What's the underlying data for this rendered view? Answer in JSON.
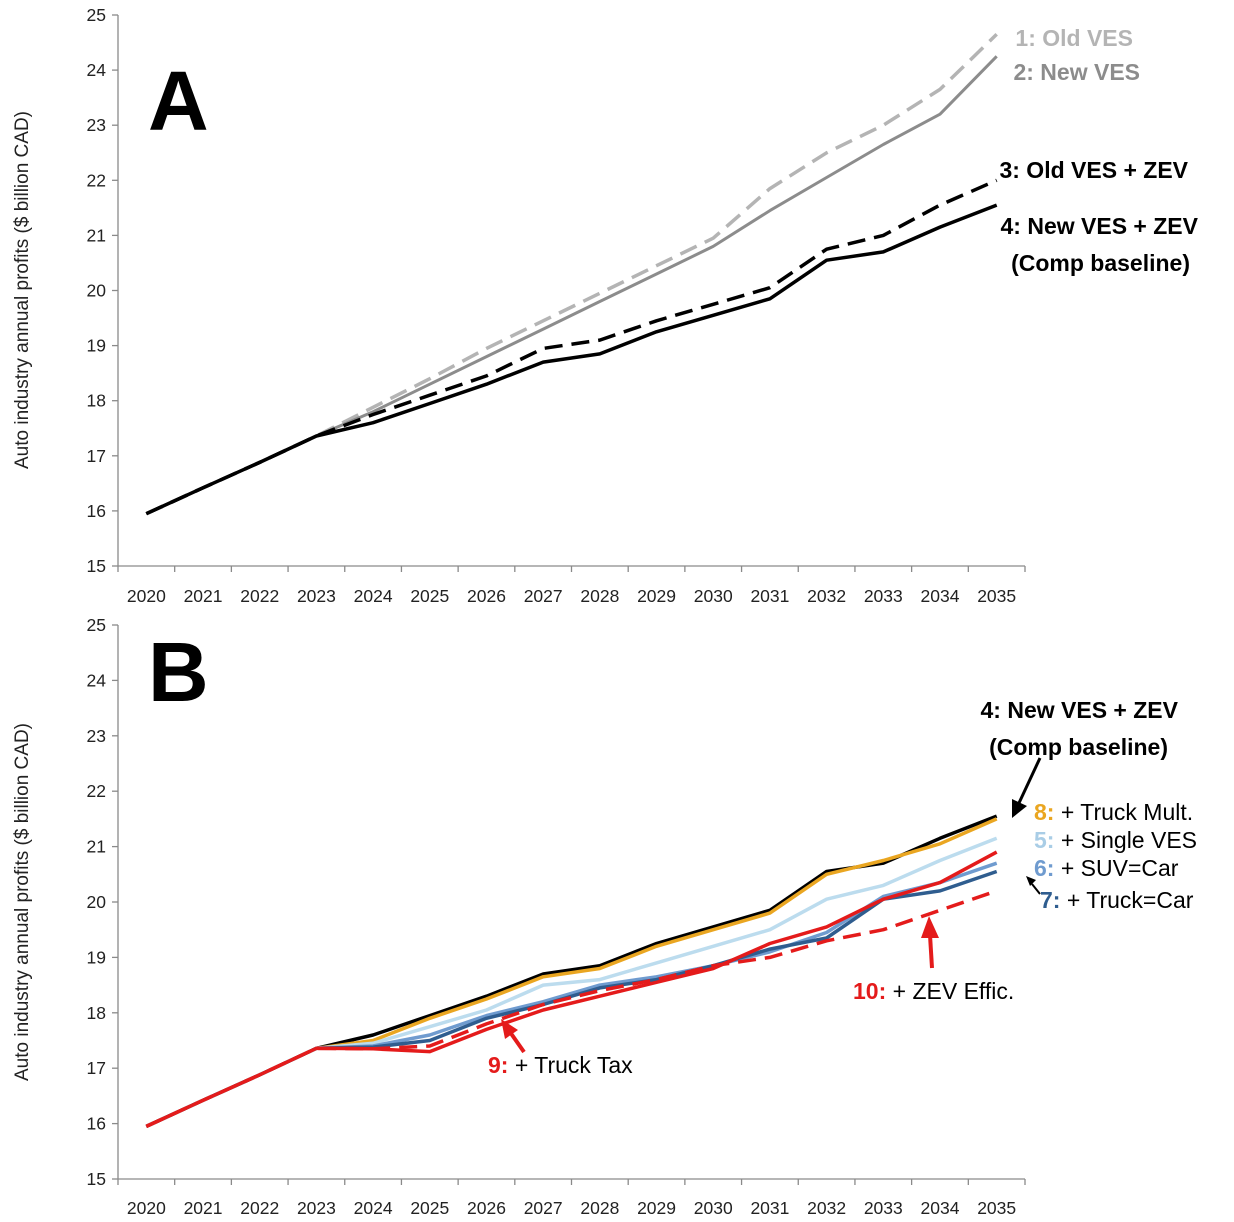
{
  "chart_data": [
    {
      "type": "line",
      "panel": "A",
      "ylabel": "Auto industry annual profits ($ billion CAD)",
      "xlabel": "",
      "categories": [
        "2020",
        "2021",
        "2022",
        "2023",
        "2024",
        "2025",
        "2026",
        "2027",
        "2028",
        "2029",
        "2030",
        "2031",
        "2032",
        "2033",
        "2034",
        "2035"
      ],
      "ylim": [
        15,
        25
      ],
      "yticks": [
        15,
        16,
        17,
        18,
        19,
        20,
        21,
        22,
        23,
        24,
        25
      ],
      "grid": false,
      "series": [
        {
          "name": "1: Old VES",
          "color": "#b4b4b4",
          "dash": true,
          "values": [
            15.95,
            16.42,
            16.88,
            17.36,
            17.88,
            18.4,
            18.95,
            19.45,
            19.95,
            20.45,
            20.95,
            21.85,
            22.5,
            23.0,
            23.65,
            24.65
          ]
        },
        {
          "name": "2: New VES",
          "color": "#8c8c8c",
          "dash": false,
          "values": [
            15.95,
            16.42,
            16.88,
            17.36,
            17.8,
            18.3,
            18.8,
            19.3,
            19.8,
            20.3,
            20.8,
            21.45,
            22.05,
            22.65,
            23.2,
            24.25
          ]
        },
        {
          "name": "3: Old VES + ZEV",
          "color": "#000000",
          "dash": true,
          "values": [
            15.95,
            16.42,
            16.88,
            17.36,
            17.75,
            18.1,
            18.45,
            18.95,
            19.1,
            19.45,
            19.75,
            20.05,
            20.75,
            21.0,
            21.55,
            22.0
          ]
        },
        {
          "name": "4: New VES + ZEV",
          "name_line2": "(Comp baseline)",
          "color": "#000000",
          "dash": false,
          "values": [
            15.95,
            16.42,
            16.88,
            17.36,
            17.6,
            17.95,
            18.3,
            18.7,
            18.85,
            19.25,
            19.55,
            19.85,
            20.55,
            20.7,
            21.15,
            21.55
          ]
        }
      ]
    },
    {
      "type": "line",
      "panel": "B",
      "ylabel": "Auto industry annual profits ($ billion CAD)",
      "xlabel": "",
      "categories": [
        "2020",
        "2021",
        "2022",
        "2023",
        "2024",
        "2025",
        "2026",
        "2027",
        "2028",
        "2029",
        "2030",
        "2031",
        "2032",
        "2033",
        "2034",
        "2035"
      ],
      "ylim": [
        15,
        25
      ],
      "yticks": [
        15,
        16,
        17,
        18,
        19,
        20,
        21,
        22,
        23,
        24,
        25
      ],
      "grid": false,
      "series": [
        {
          "name": "4: New VES + ZEV",
          "name_line2": "(Comp baseline)",
          "color": "#000000",
          "dash": false,
          "values": [
            15.95,
            16.42,
            16.88,
            17.36,
            17.6,
            17.95,
            18.3,
            18.7,
            18.85,
            19.25,
            19.55,
            19.85,
            20.55,
            20.7,
            21.15,
            21.55
          ]
        },
        {
          "num": "8:",
          "text": " + Truck Mult.",
          "color": "#eaa621",
          "dash": false,
          "values": [
            15.95,
            16.42,
            16.88,
            17.36,
            17.5,
            17.9,
            18.25,
            18.65,
            18.8,
            19.2,
            19.5,
            19.8,
            20.5,
            20.75,
            21.05,
            21.5
          ]
        },
        {
          "num": "5:",
          "text": " + Single VES",
          "color": "#bcdcee",
          "dash": false,
          "values": [
            15.95,
            16.42,
            16.88,
            17.36,
            17.45,
            17.75,
            18.05,
            18.5,
            18.6,
            18.9,
            19.2,
            19.5,
            20.05,
            20.3,
            20.75,
            21.15
          ]
        },
        {
          "num": "6:",
          "text": " + SUV=Car",
          "color": "#6f9bcf",
          "dash": false,
          "values": [
            15.95,
            16.42,
            16.88,
            17.36,
            17.4,
            17.6,
            17.95,
            18.2,
            18.5,
            18.65,
            18.85,
            19.1,
            19.45,
            20.1,
            20.35,
            20.7
          ]
        },
        {
          "num": "7:",
          "text": " + Truck=Car",
          "color": "#2f5d8f",
          "dash": false,
          "values": [
            15.95,
            16.42,
            16.88,
            17.36,
            17.38,
            17.5,
            17.9,
            18.15,
            18.45,
            18.6,
            18.85,
            19.15,
            19.35,
            20.05,
            20.2,
            20.55
          ]
        },
        {
          "num": "9:",
          "text": " + Truck Tax",
          "color": "#e41b1b",
          "dash": false,
          "values": [
            15.95,
            16.42,
            16.88,
            17.36,
            17.35,
            17.3,
            17.7,
            18.05,
            18.3,
            18.55,
            18.8,
            19.25,
            19.55,
            20.05,
            20.35,
            20.9
          ]
        },
        {
          "num": "10:",
          "text": " + ZEV Effic.",
          "color": "#e41b1b",
          "dash": true,
          "values": [
            15.95,
            16.42,
            16.88,
            17.36,
            17.35,
            17.4,
            17.8,
            18.15,
            18.4,
            18.6,
            18.85,
            19.0,
            19.3,
            19.5,
            19.85,
            20.2
          ]
        }
      ]
    }
  ]
}
